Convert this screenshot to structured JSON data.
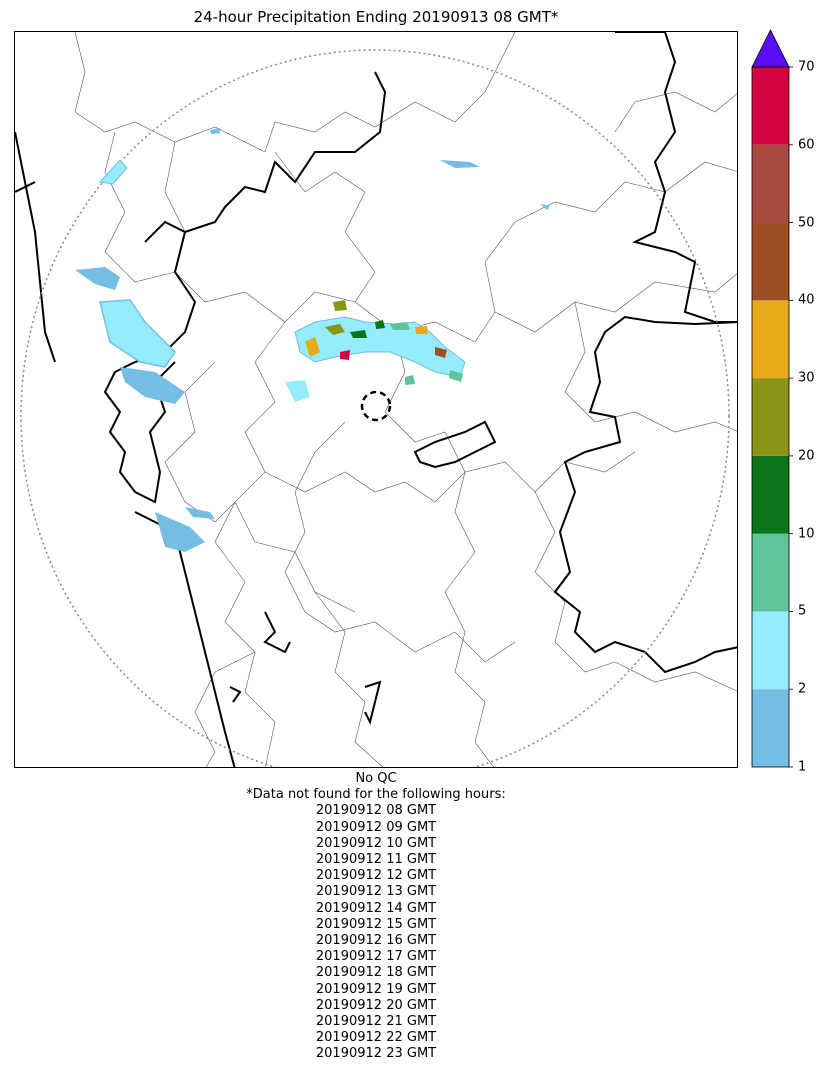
{
  "title": "24-hour Precipitation Ending 20190913 08 GMT*",
  "colorbar": {
    "ticks": [
      "1",
      "2",
      "5",
      "10",
      "20",
      "30",
      "40",
      "50",
      "60",
      "70"
    ],
    "colors": [
      "#74bde3",
      "#94ecfc",
      "#5ec49a",
      "#0c7318",
      "#8a9416",
      "#e7aa18",
      "#9c4f26",
      "#a74b40",
      "#d20442"
    ],
    "extend_color": "#5a0cf5"
  },
  "map": {
    "range_ring_color": "#888888",
    "border_color": "#000000",
    "district_color": "#555555"
  },
  "notes": {
    "qc": "No QC",
    "missing_header": "*Data not found for the following hours:",
    "missing_hours": [
      "20190912 08 GMT",
      "20190912 09 GMT",
      "20190912 10 GMT",
      "20190912 11 GMT",
      "20190912 12 GMT",
      "20190912 13 GMT",
      "20190912 14 GMT",
      "20190912 15 GMT",
      "20190912 16 GMT",
      "20190912 17 GMT",
      "20190912 18 GMT",
      "20190912 19 GMT",
      "20190912 20 GMT",
      "20190912 21 GMT",
      "20190912 22 GMT",
      "20190912 23 GMT"
    ]
  }
}
